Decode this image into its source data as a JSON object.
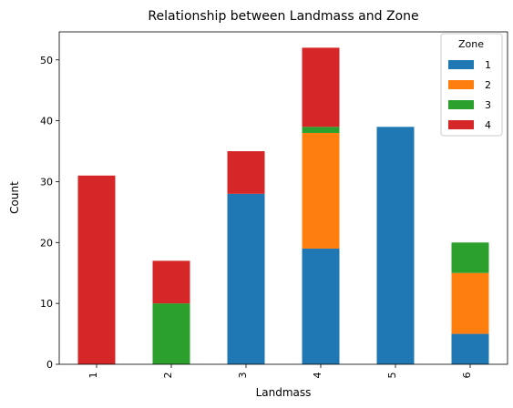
{
  "chart_data": {
    "type": "bar",
    "stacked": true,
    "title": "Relationship between Landmass and Zone",
    "xlabel": "Landmass",
    "ylabel": "Count",
    "categories": [
      "1",
      "2",
      "3",
      "4",
      "5",
      "6"
    ],
    "ylim": [
      0,
      54.6
    ],
    "yticks": [
      0,
      10,
      20,
      30,
      40,
      50
    ],
    "grid": false,
    "legend": {
      "title": "Zone",
      "placement": "top-right"
    },
    "series": [
      {
        "name": "1",
        "color": "#1f77b4",
        "values": [
          0,
          0,
          28,
          19,
          39,
          5
        ]
      },
      {
        "name": "2",
        "color": "#ff7f0e",
        "values": [
          0,
          0,
          0,
          19,
          0,
          10
        ]
      },
      {
        "name": "3",
        "color": "#2ca02c",
        "values": [
          0,
          10,
          0,
          1,
          0,
          5
        ]
      },
      {
        "name": "4",
        "color": "#d62728",
        "values": [
          31,
          7,
          7,
          13,
          0,
          0
        ]
      }
    ]
  }
}
